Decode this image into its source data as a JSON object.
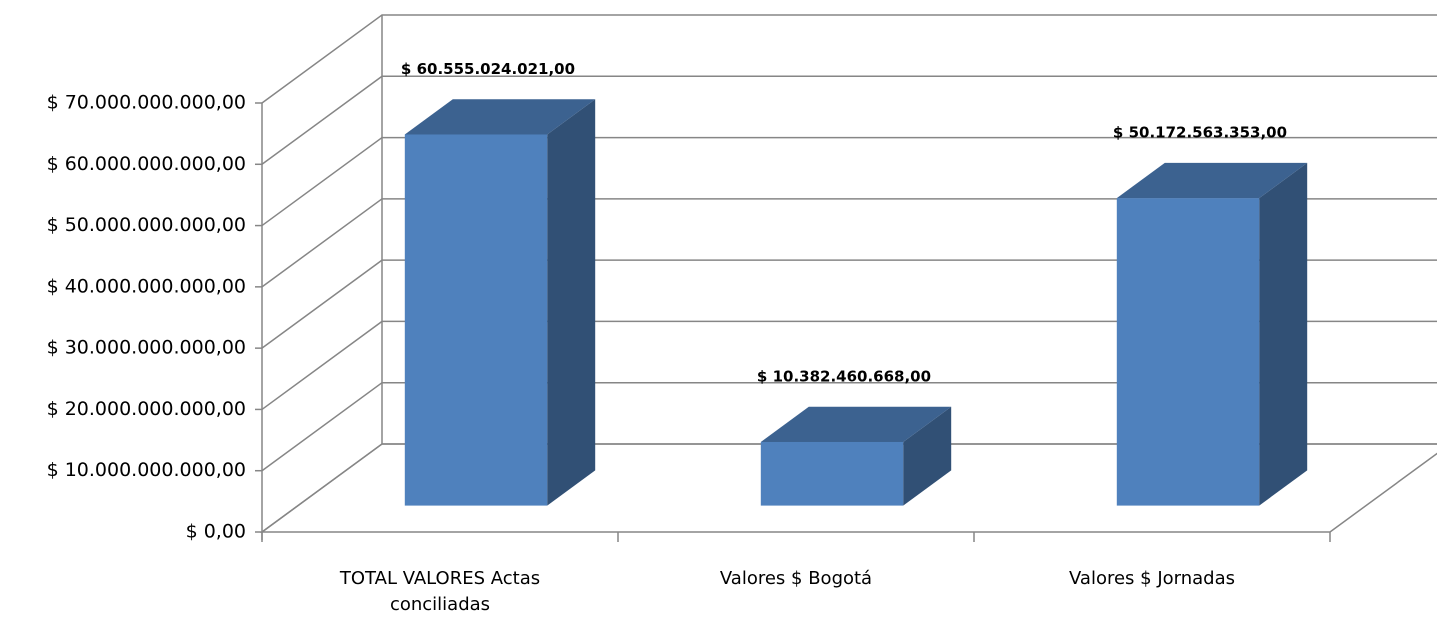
{
  "chart_data": {
    "type": "bar3d",
    "categories": [
      "TOTAL VALORES Actas conciliadas",
      "Valores $ Bogotá",
      "Valores $ Jornadas"
    ],
    "values": [
      60555024021,
      10382460668,
      50172563353
    ],
    "value_labels": [
      "$ 60.555.024.021,00",
      "$ 10.382.460.668,00",
      "$ 50.172.563.353,00"
    ],
    "color": "#4f81bd",
    "ylim": [
      0,
      70000000000
    ],
    "yticks": [
      {
        "value": 0,
        "label": "$ 0,00"
      },
      {
        "value": 10000000000,
        "label": "$ 10.000.000.000,00"
      },
      {
        "value": 20000000000,
        "label": "$ 20.000.000.000,00"
      },
      {
        "value": 30000000000,
        "label": "$ 30.000.000.000,00"
      },
      {
        "value": 40000000000,
        "label": "$ 40.000.000.000,00"
      },
      {
        "value": 50000000000,
        "label": "$ 50.000.000.000,00"
      },
      {
        "value": 60000000000,
        "label": "$ 60.000.000.000,00"
      },
      {
        "value": 70000000000,
        "label": "$ 70.000.000.000,00"
      }
    ],
    "grid": true
  }
}
